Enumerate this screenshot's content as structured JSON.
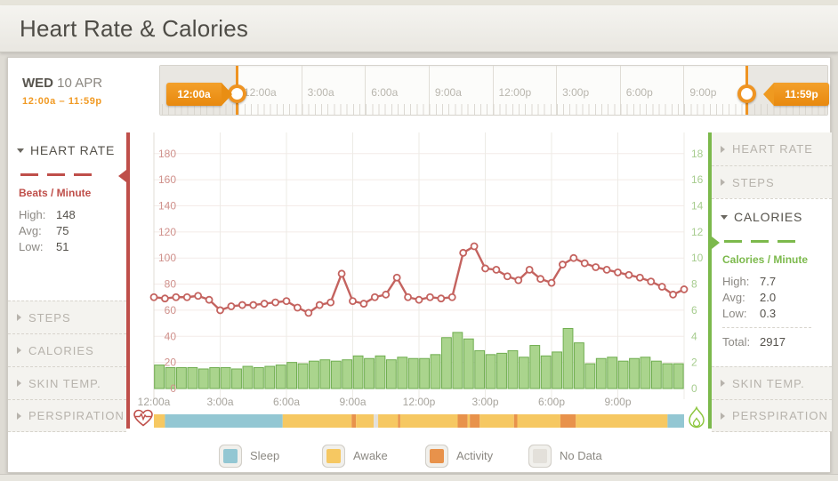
{
  "header": {
    "title": "Heart Rate & Calories"
  },
  "date_bar": {
    "day": "WED",
    "date": "10 APR",
    "range": "12:00a – 11:59p"
  },
  "timeline": {
    "start_tag": "12:00a",
    "end_tag": "11:59p",
    "tick_labels": [
      "12:00a",
      "3:00a",
      "6:00a",
      "9:00a",
      "12:00p",
      "3:00p",
      "6:00p",
      "9:00p",
      "12:00a"
    ]
  },
  "left_sidebar": {
    "expanded": {
      "title": "HEART RATE",
      "unit": "Beats / Minute",
      "stats": [
        {
          "label": "High:",
          "value": "148"
        },
        {
          "label": "Avg:",
          "value": "75"
        },
        {
          "label": "Low:",
          "value": "51"
        }
      ]
    },
    "collapsed": [
      {
        "label": "STEPS"
      },
      {
        "label": "CALORIES"
      },
      {
        "label": "SKIN TEMP."
      },
      {
        "label": "PERSPIRATION"
      }
    ]
  },
  "right_sidebar": {
    "collapsed_top": [
      {
        "label": "HEART RATE"
      },
      {
        "label": "STEPS"
      }
    ],
    "expanded": {
      "title": "CALORIES",
      "unit": "Calories / Minute",
      "stats": [
        {
          "label": "High:",
          "value": "7.7"
        },
        {
          "label": "Avg:",
          "value": "2.0"
        },
        {
          "label": "Low:",
          "value": "0.3"
        }
      ],
      "total_label": "Total:",
      "total_value": "2917"
    },
    "collapsed_bottom": [
      {
        "label": "SKIN TEMP."
      },
      {
        "label": "PERSPIRATION"
      }
    ]
  },
  "chart_data": {
    "type": "line+bar",
    "x_unit": "time of day, 30-minute intervals from 12:00a to 11:59p",
    "x_axis_labels": [
      "12:00a",
      "3:00a",
      "6:00a",
      "9:00a",
      "12:00p",
      "3:00p",
      "6:00p",
      "9:00p"
    ],
    "left_axis": {
      "label": "Beats / Minute",
      "color": "#d0918c",
      "ticks": [
        0,
        20,
        40,
        60,
        80,
        100,
        120,
        140,
        160,
        180
      ],
      "range": [
        0,
        196
      ]
    },
    "right_axis": {
      "label": "Calories / Minute",
      "color": "#a6cc8e",
      "ticks": [
        0,
        2,
        4,
        6,
        8,
        10,
        12,
        14,
        16,
        18
      ],
      "range": [
        0,
        19.6
      ]
    },
    "grid": true,
    "series": [
      {
        "name": "Heart Rate (bpm)",
        "type": "line",
        "color": "#c4635f",
        "values": [
          70,
          69,
          70,
          70,
          71,
          68,
          60,
          63,
          64,
          64,
          65,
          66,
          67,
          62,
          58,
          64,
          66,
          88,
          67,
          65,
          70,
          72,
          85,
          70,
          68,
          70,
          69,
          70,
          104,
          109,
          92,
          91,
          86,
          83,
          91,
          84,
          81,
          95,
          100,
          96,
          93,
          91,
          89,
          87,
          85,
          82,
          78,
          72,
          76
        ]
      },
      {
        "name": "Calories / Minute",
        "type": "bar",
        "color": "#aad48d",
        "values": [
          1.8,
          1.6,
          1.6,
          1.6,
          1.5,
          1.6,
          1.6,
          1.5,
          1.7,
          1.6,
          1.7,
          1.8,
          2.0,
          1.9,
          2.1,
          2.2,
          2.1,
          2.2,
          2.5,
          2.3,
          2.5,
          2.2,
          2.4,
          2.3,
          2.3,
          2.6,
          3.9,
          4.3,
          3.8,
          2.9,
          2.6,
          2.7,
          2.9,
          2.4,
          3.3,
          2.5,
          2.8,
          4.6,
          3.5,
          1.9,
          2.3,
          2.4,
          2.1,
          2.3,
          2.4,
          2.1,
          1.9,
          1.9
        ]
      }
    ],
    "activity_strip": {
      "colors": {
        "sleep": "#93c7d3",
        "awake": "#f6c862",
        "activity": "#e8924b",
        "nodata": "#e3e0da"
      },
      "segments": [
        {
          "type": "awake",
          "start": 0,
          "end": 0.5
        },
        {
          "type": "sleep",
          "start": 0.5,
          "end": 5.83
        },
        {
          "type": "awake",
          "start": 5.83,
          "end": 8.95
        },
        {
          "type": "activity",
          "start": 8.95,
          "end": 9.15
        },
        {
          "type": "awake",
          "start": 9.15,
          "end": 9.95
        },
        {
          "type": "nodata",
          "start": 9.95,
          "end": 10.15
        },
        {
          "type": "awake",
          "start": 10.15,
          "end": 11.05
        },
        {
          "type": "activity",
          "start": 11.05,
          "end": 11.15
        },
        {
          "type": "awake",
          "start": 11.15,
          "end": 13.75
        },
        {
          "type": "activity",
          "start": 13.75,
          "end": 14.2
        },
        {
          "type": "awake",
          "start": 14.2,
          "end": 14.3
        },
        {
          "type": "activity",
          "start": 14.3,
          "end": 14.75
        },
        {
          "type": "awake",
          "start": 14.75,
          "end": 16.3
        },
        {
          "type": "activity",
          "start": 16.3,
          "end": 16.45
        },
        {
          "type": "awake",
          "start": 16.45,
          "end": 18.4
        },
        {
          "type": "activity",
          "start": 18.4,
          "end": 19.1
        },
        {
          "type": "awake",
          "start": 19.1,
          "end": 23.25
        },
        {
          "type": "sleep",
          "start": 23.25,
          "end": 24
        }
      ]
    }
  },
  "legend": {
    "items": [
      {
        "label": "Sleep",
        "color": "#93c7d3"
      },
      {
        "label": "Awake",
        "color": "#f6c862"
      },
      {
        "label": "Activity",
        "color": "#e8924b"
      },
      {
        "label": "No Data",
        "color": "#e3e0da"
      }
    ]
  },
  "colors": {
    "accent_orange": "#ef9422",
    "heart_red": "#bf4f4a",
    "calorie_green": "#7cb94c"
  }
}
